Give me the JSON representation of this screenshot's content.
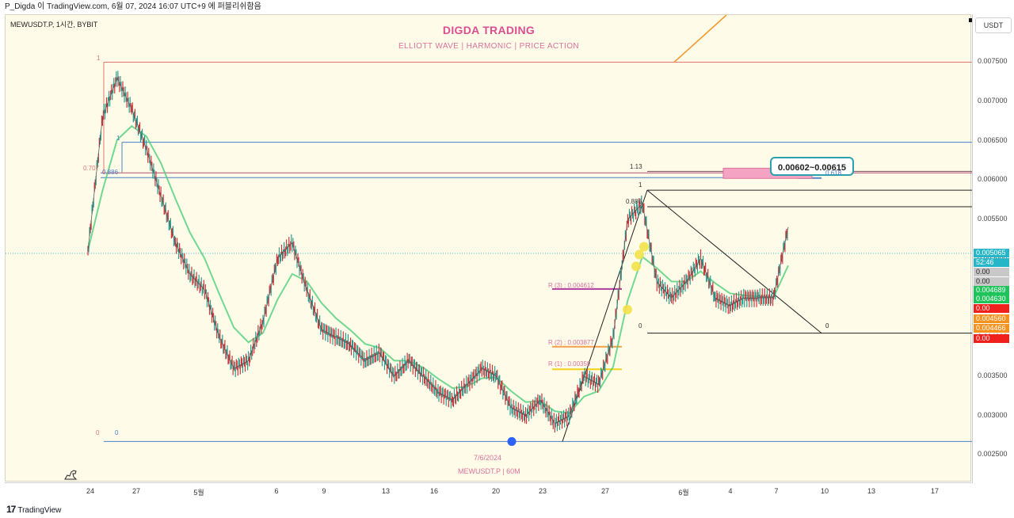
{
  "header": {
    "text": "P_Digda 이 TradingView.com, 6월 07, 2024 16:07 UTC+9 에 퍼블리쉬함음"
  },
  "chart_header": {
    "ticker": "MEWUSDT.P, 1시간, BYBIT",
    "title": "DIGDA TRADING",
    "subtitle": "ELLIOTT WAVE   |   HARMONIC   |   PRICE ACTION"
  },
  "watermark": {
    "date": "7/6/2024",
    "symbol": "MEWUSDT.P | 60M"
  },
  "callout": "0.00602~0.00615",
  "price_axis": {
    "unit": "USDT",
    "ticks": [
      "0.007500",
      "0.007000",
      "0.006500",
      "0.006000",
      "0.005500",
      "0.005000",
      "0.004500",
      "0.004000",
      "0.003500",
      "0.003000",
      "0.002500"
    ],
    "tick_values": [
      0.0075,
      0.007,
      0.0065,
      0.006,
      0.0055,
      0.005,
      0.0045,
      0.004,
      0.0035,
      0.003,
      0.0025
    ],
    "badges": [
      {
        "text": "0.005065",
        "price": 0.005065,
        "color": "#26b6c7"
      },
      {
        "text": "52:46",
        "price": 0.00494,
        "color": "#26b6c7"
      },
      {
        "text": "0.00",
        "price": 0.00482,
        "color": "#c8c8c8",
        "text_color": "#222"
      },
      {
        "text": "0.00",
        "price": 0.0047,
        "color": "#c8c8c8",
        "text_color": "#222"
      },
      {
        "text": "0.004689",
        "price": 0.004595,
        "color": "#1ec45a"
      },
      {
        "text": "0.004630",
        "price": 0.004475,
        "color": "#1ec45a"
      },
      {
        "text": "0.00",
        "price": 0.004355,
        "color": "#f0201c"
      },
      {
        "text": "0.004560",
        "price": 0.00423,
        "color": "#f5921e"
      },
      {
        "text": "0.004466",
        "price": 0.00411,
        "color": "#f5921e"
      },
      {
        "text": "0.00",
        "price": 0.00398,
        "color": "#f0201c"
      }
    ]
  },
  "time_axis": {
    "labels": [
      "24",
      "27",
      "5월",
      "6",
      "9",
      "13",
      "16",
      "20",
      "23",
      "27",
      "6월",
      "4",
      "7",
      "10",
      "13",
      "17"
    ]
  },
  "fib_labels": {
    "left_1": "1",
    "left_0": "0",
    "left_0b": "0",
    "left_1b": "1",
    "left_0707": "0.707",
    "left_0886": "0.886",
    "right_113": "1.13",
    "right_1": "1",
    "right_0886": "0.886",
    "right_0618": "0.618",
    "right_0": "0",
    "small_0": "0"
  },
  "resistance_labels": {
    "r3": "R (3) : 0.004612",
    "r2": "R (2) : 0.003877",
    "r1": "R (1) : 0.00359"
  },
  "footer": {
    "logo_text": "TradingView"
  },
  "chart_data": {
    "type": "line",
    "title": "DIGDA TRADING",
    "xlabel": "",
    "ylabel": "",
    "ylim": [
      0.00215,
      0.0081
    ],
    "x_categories": [
      "24",
      "27",
      "5월",
      "6",
      "9",
      "13",
      "16",
      "20",
      "23",
      "27",
      "6월",
      "4",
      "7",
      "10",
      "13",
      "17"
    ],
    "series": [
      {
        "name": "MEWUSDT.P",
        "x": [
          "24",
          "24",
          "25",
          "25",
          "26",
          "26",
          "27",
          "28",
          "29",
          "5월",
          "5월",
          "2",
          "3",
          "4",
          "5",
          "6",
          "7",
          "8",
          "9",
          "10",
          "11",
          "12",
          "13",
          "14",
          "15",
          "16",
          "17",
          "18",
          "19",
          "20",
          "21",
          "22",
          "23",
          "24",
          "25",
          "26",
          "27",
          "28",
          "29",
          "30",
          "31",
          "6월",
          "2",
          "3",
          "4",
          "5",
          "6",
          "7",
          "7"
        ],
        "values": [
          0.0051,
          0.0068,
          0.0073,
          0.0069,
          0.0064,
          0.0058,
          0.0052,
          0.0048,
          0.0046,
          0.004,
          0.0036,
          0.0037,
          0.0042,
          0.005,
          0.0052,
          0.0046,
          0.0041,
          0.004,
          0.0039,
          0.0037,
          0.0038,
          0.0035,
          0.0037,
          0.0035,
          0.0033,
          0.0032,
          0.0034,
          0.0036,
          0.0035,
          0.0031,
          0.003,
          0.0032,
          0.0029,
          0.003,
          0.0035,
          0.0034,
          0.004,
          0.0055,
          0.0057,
          0.0047,
          0.0045,
          0.0047,
          0.005,
          0.0045,
          0.0044,
          0.0045,
          0.0045,
          0.0045,
          0.0054
        ]
      }
    ],
    "levels": [
      {
        "label": "1",
        "value": 0.0075,
        "color": "#e0786b"
      },
      {
        "label": "1",
        "value": 0.00648,
        "color": "#4a7fc8"
      },
      {
        "label": "0.707",
        "value": 0.00609,
        "color": "#b05070"
      },
      {
        "label": "0.886",
        "value": 0.00603,
        "color": "#4a7fc8"
      },
      {
        "label": "1.13",
        "value": 0.00611,
        "color": "#7a4b5e"
      },
      {
        "label": "0.618",
        "value": 0.00602,
        "color": "#4a7fc8"
      },
      {
        "label": "1",
        "value": 0.00587,
        "color": "#222222"
      },
      {
        "label": "0.886",
        "value": 0.00566,
        "color": "#222222"
      },
      {
        "label": "0",
        "value": 0.00405,
        "color": "#222222"
      },
      {
        "label": "0",
        "value": 0.00267,
        "color": "#4a7fc8"
      }
    ],
    "resistance": [
      {
        "label": "R (3) : 0.004612",
        "value": 0.004612,
        "color": "#b03ba0"
      },
      {
        "label": "R (2) : 0.003877",
        "value": 0.003877,
        "color": "#f5a04a"
      },
      {
        "label": "R (1) : 0.00359",
        "value": 0.00359,
        "color": "#f2d21a"
      }
    ],
    "target_zone": [
      0.00602,
      0.00615
    ],
    "grid": false,
    "legend": "none"
  }
}
